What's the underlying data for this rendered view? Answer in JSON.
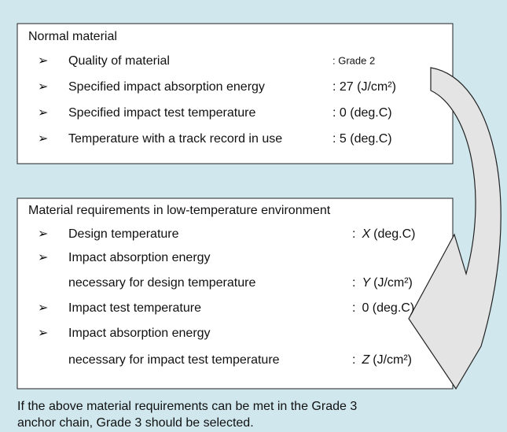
{
  "normal": {
    "title": "Normal material",
    "items": [
      {
        "label": "Quality of material",
        "value": ": Grade 2"
      },
      {
        "label": "Specified impact absorption energy",
        "value": ": 27 (J/cm²)"
      },
      {
        "label": "Specified impact test temperature",
        "value": ": 0 (deg.C)"
      },
      {
        "label": "Temperature with a track record in use",
        "value": ": 5 (deg.C)"
      }
    ]
  },
  "low_temp": {
    "title": "Material requirements in low-temperature environment",
    "items": [
      {
        "label": "Design temperature",
        "colon": ":",
        "var": "X",
        "unit": "(deg.C)"
      },
      {
        "label": "Impact absorption energy",
        "label2": "necessary for design temperature",
        "colon": ":",
        "var": "Y",
        "unit": "(J/cm²)"
      },
      {
        "label": "Impact test temperature",
        "colon": ":",
        "value": "0 (deg.C)"
      },
      {
        "label": "Impact absorption energy",
        "label2": "necessary for impact test temperature",
        "colon": ":",
        "var": "Z",
        "unit": "(J/cm²)"
      }
    ]
  },
  "footer": [
    "If the above material requirements can be met in the Grade 3",
    "anchor chain, Grade 3 should be selected."
  ],
  "bullet": "➢"
}
